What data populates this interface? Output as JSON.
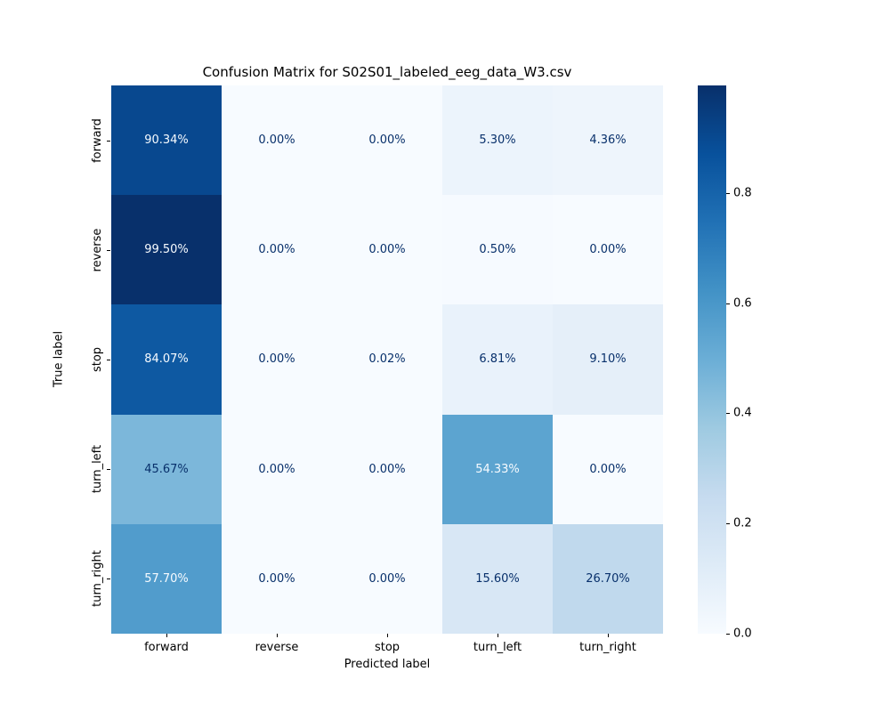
{
  "chart_data": {
    "type": "heatmap",
    "title": "Confusion Matrix for S02S01_labeled_eeg_data_W3.csv",
    "xlabel": "Predicted label",
    "ylabel": "True label",
    "x_categories": [
      "forward",
      "reverse",
      "stop",
      "turn_left",
      "turn_right"
    ],
    "y_categories": [
      "forward",
      "reverse",
      "stop",
      "turn_left",
      "turn_right"
    ],
    "values_percent": [
      [
        90.34,
        0.0,
        0.0,
        5.3,
        4.36
      ],
      [
        99.5,
        0.0,
        0.0,
        0.5,
        0.0
      ],
      [
        84.07,
        0.0,
        0.02,
        6.81,
        9.1
      ],
      [
        45.67,
        0.0,
        0.0,
        54.33,
        0.0
      ],
      [
        57.7,
        0.0,
        0.0,
        15.6,
        26.7
      ]
    ],
    "cell_labels": [
      [
        "90.34%",
        "0.00%",
        "0.00%",
        "5.30%",
        "4.36%"
      ],
      [
        "99.50%",
        "0.00%",
        "0.00%",
        "0.50%",
        "0.00%"
      ],
      [
        "84.07%",
        "0.00%",
        "0.02%",
        "6.81%",
        "9.10%"
      ],
      [
        "45.67%",
        "0.00%",
        "0.00%",
        "54.33%",
        "0.00%"
      ],
      [
        "57.70%",
        "0.00%",
        "0.00%",
        "15.60%",
        "26.70%"
      ]
    ],
    "colormap": "Blues",
    "vmin": 0.0,
    "vmax": 0.995,
    "grid": false,
    "legend_position": "colorbar-right",
    "colorbar_ticks": [
      {
        "label": "0.0",
        "value": 0.0
      },
      {
        "label": "0.2",
        "value": 0.2
      },
      {
        "label": "0.4",
        "value": 0.4
      },
      {
        "label": "0.6",
        "value": 0.6
      },
      {
        "label": "0.8",
        "value": 0.8
      }
    ]
  },
  "colors": {
    "background": "#ffffff",
    "cmap_stops": [
      "#f7fbff",
      "#deebf7",
      "#c6dbef",
      "#9ecae1",
      "#6baed6",
      "#4292c6",
      "#2171b5",
      "#08519c",
      "#08306b"
    ],
    "dark_cell_text": "#08306b",
    "light_cell_text": "#f7fbff",
    "axis_text": "#000000"
  }
}
